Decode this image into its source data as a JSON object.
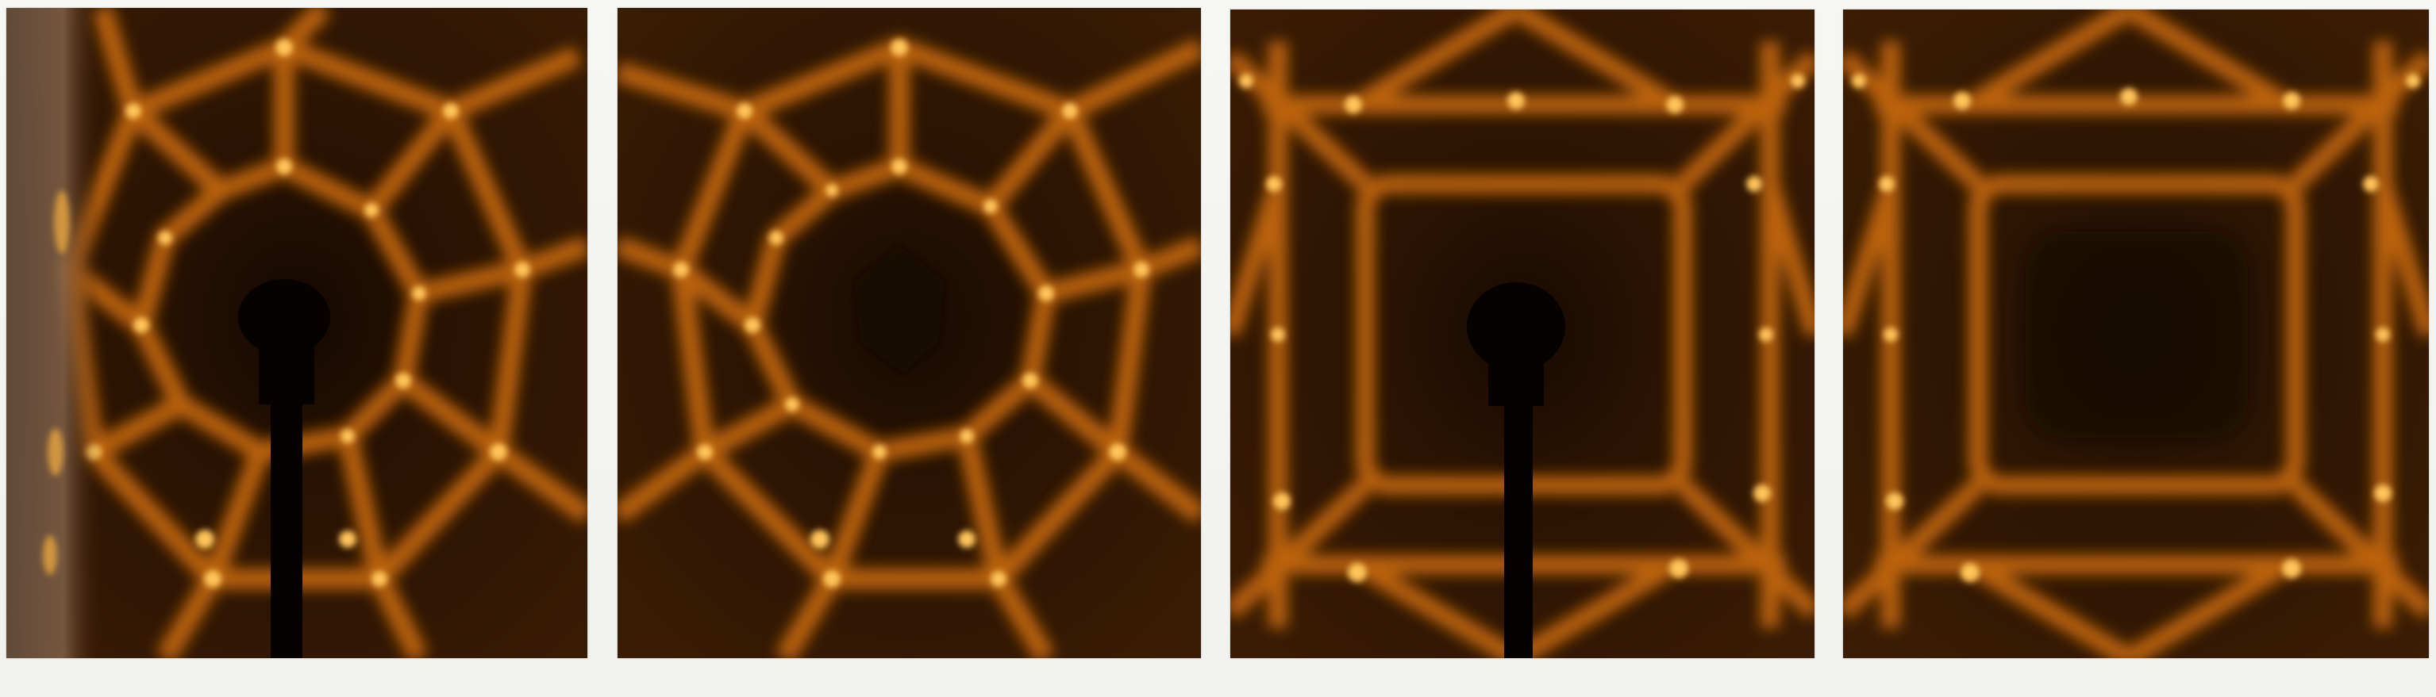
{
  "figure": {
    "panel_count": 4,
    "panels": [
      {
        "id": "panel-1",
        "pattern": "hexagonal",
        "beam_stop": true,
        "colormap": "dark-brown-to-orange"
      },
      {
        "id": "panel-2",
        "pattern": "hexagonal",
        "beam_stop": false,
        "colormap": "dark-brown-to-orange"
      },
      {
        "id": "panel-3",
        "pattern": "square",
        "beam_stop": true,
        "colormap": "dark-brown-to-orange"
      },
      {
        "id": "panel-4",
        "pattern": "square",
        "beam_stop": false,
        "colormap": "dark-brown-to-orange"
      }
    ],
    "colors": {
      "background": "#1c0d02",
      "glow": "#e0860f",
      "hot": "#ffd27a",
      "beam_stop": "#050200",
      "page": "#f4f4f2"
    }
  }
}
